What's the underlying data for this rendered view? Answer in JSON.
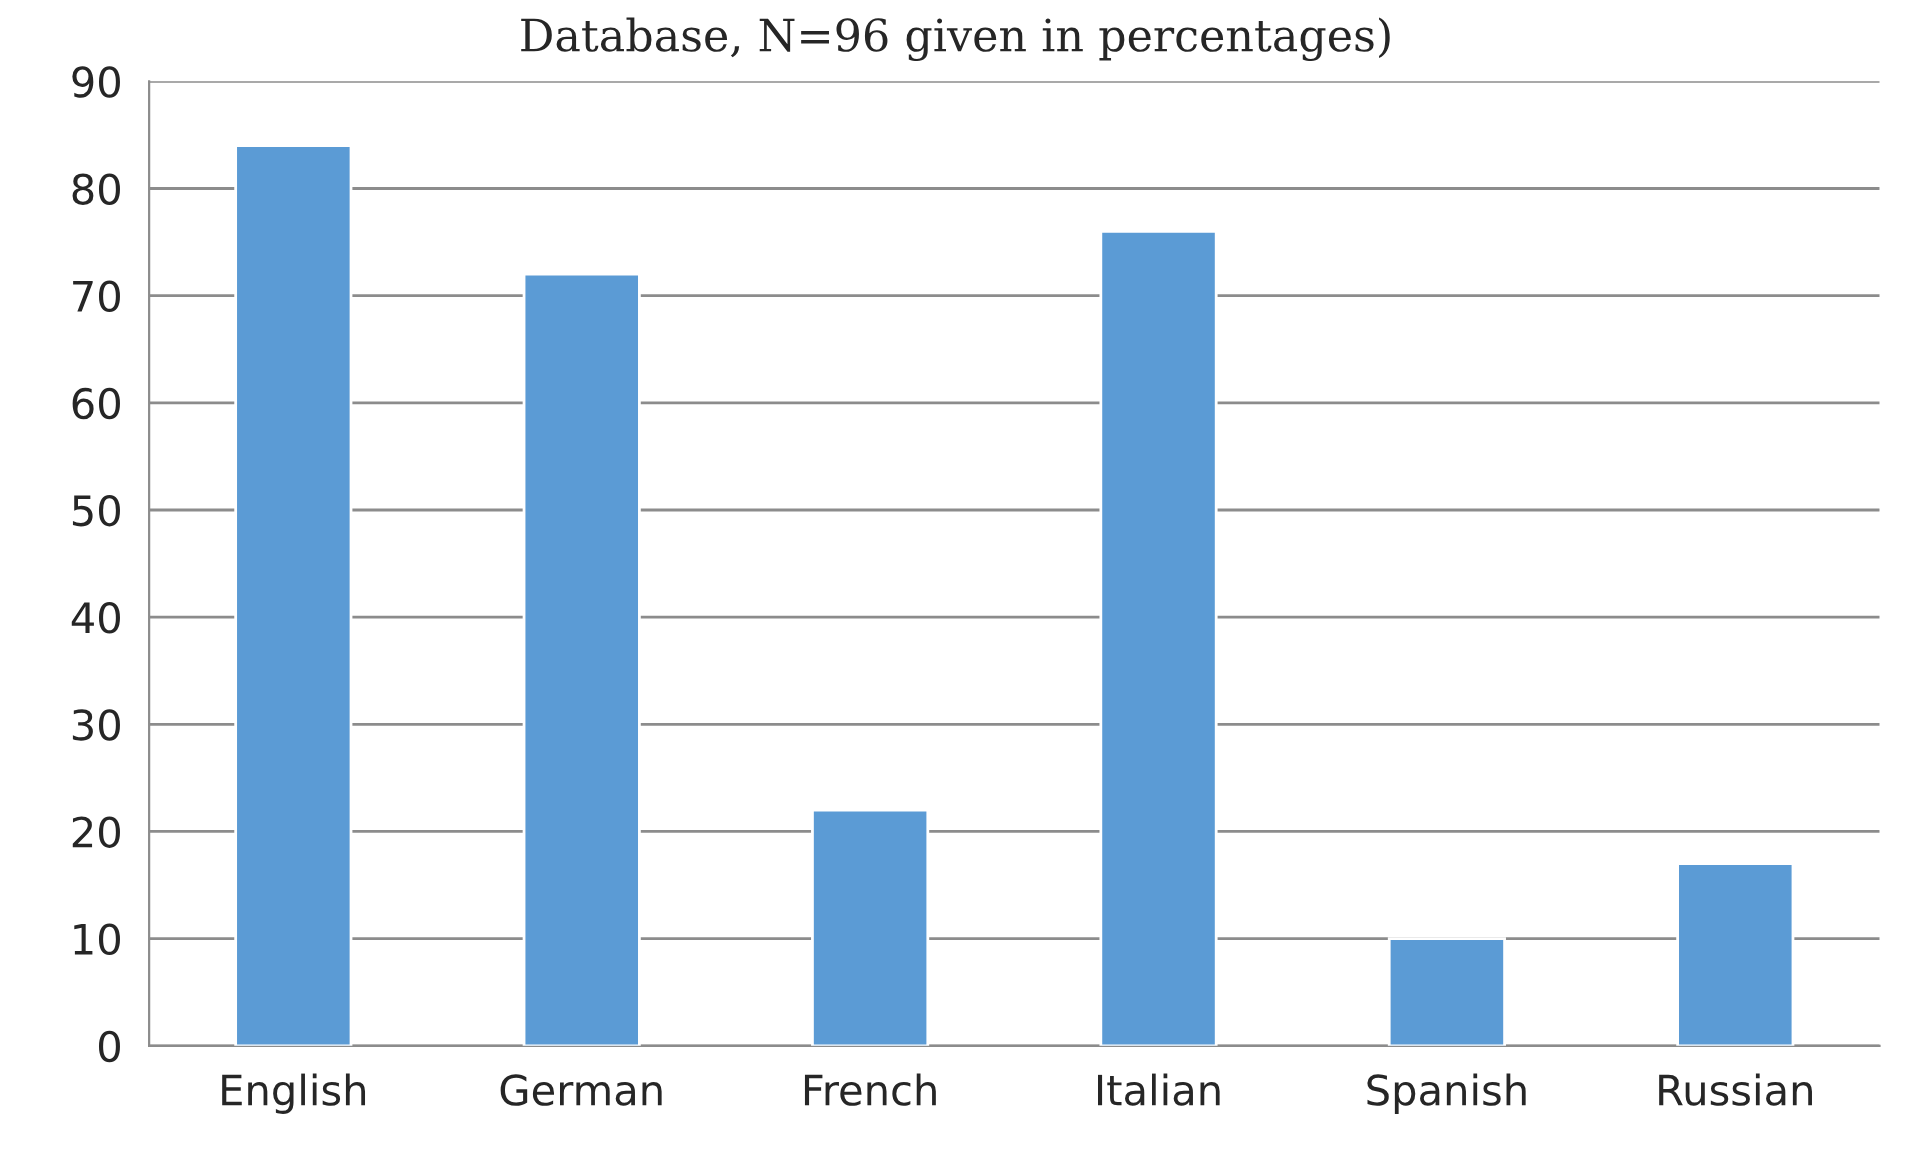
{
  "chart_data": {
    "type": "bar",
    "title": "Database, N=96 given in percentages)",
    "categories": [
      "English",
      "German",
      "French",
      "Italian",
      "Spanish",
      "Russian"
    ],
    "values": [
      84,
      72,
      22,
      76,
      10,
      17
    ],
    "color": "#5b9bd5",
    "ylim": [
      0,
      90
    ],
    "yticks": [
      0,
      10,
      20,
      30,
      40,
      50,
      60,
      70,
      80,
      90
    ],
    "grid": "y",
    "legend": false
  }
}
